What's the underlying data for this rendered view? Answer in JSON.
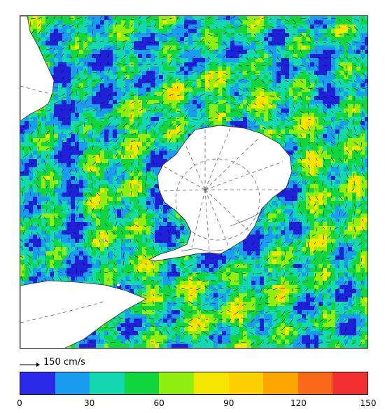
{
  "map": {
    "background_speed_color": "#2020d8",
    "land_color": "#ffffff",
    "coast_color": "#333333",
    "graticule_color": "#666666",
    "features": [
      "antarctica",
      "south-america-tip",
      "africa-tip",
      "australia-new-zealand-region",
      "ice-shelf-coastline",
      "current-vectors"
    ]
  },
  "scale_reference": {
    "label": "150 cm/s",
    "speed_cm_s": 150
  },
  "colorbar": {
    "min": 0,
    "max": 150,
    "colors": [
      "#2a2ae8",
      "#1a9cf0",
      "#14d8b0",
      "#12d640",
      "#90ee10",
      "#f5e600",
      "#fdd000",
      "#fda500",
      "#fb6a1a",
      "#f23030"
    ],
    "ticks": [
      "0",
      "30",
      "60",
      "90",
      "120",
      "150"
    ]
  }
}
